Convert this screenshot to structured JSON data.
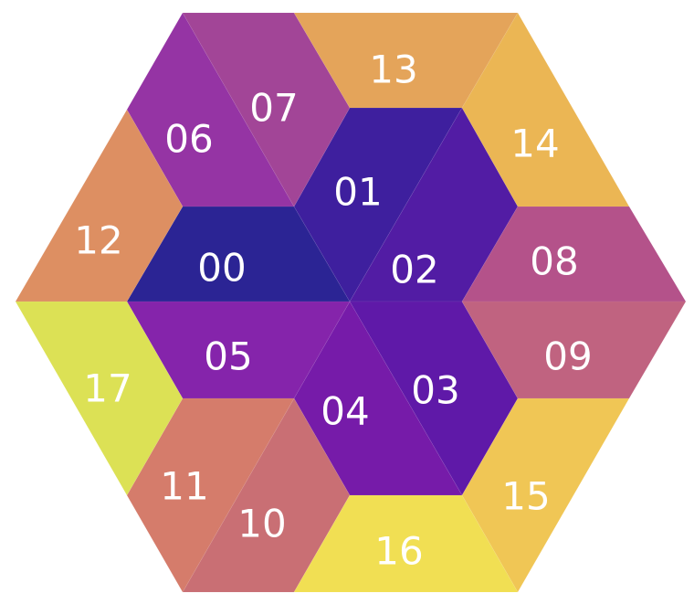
{
  "tiles": [
    {
      "label": "00",
      "color": "#2b2494"
    },
    {
      "label": "01",
      "color": "#3e1f9e"
    },
    {
      "label": "02",
      "color": "#521ca4"
    },
    {
      "label": "03",
      "color": "#5f19a8"
    },
    {
      "label": "04",
      "color": "#761ba9"
    },
    {
      "label": "05",
      "color": "#8524ab"
    },
    {
      "label": "06",
      "color": "#9534a4"
    },
    {
      "label": "07",
      "color": "#a24597"
    },
    {
      "label": "08",
      "color": "#b4528a"
    },
    {
      "label": "09",
      "color": "#c06380"
    },
    {
      "label": "10",
      "color": "#c96f74"
    },
    {
      "label": "11",
      "color": "#d57c6b"
    },
    {
      "label": "12",
      "color": "#dd8f62"
    },
    {
      "label": "13",
      "color": "#e4a45a"
    },
    {
      "label": "14",
      "color": "#ebb654"
    },
    {
      "label": "15",
      "color": "#f0c655"
    },
    {
      "label": "16",
      "color": "#f1df53"
    },
    {
      "label": "17",
      "color": "#dce155"
    }
  ]
}
